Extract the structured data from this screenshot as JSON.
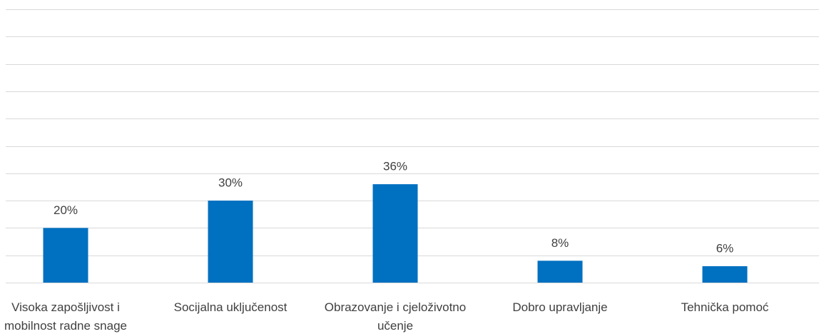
{
  "chart_data": {
    "type": "bar",
    "categories": [
      "Visoka zapošljivost i mobilnost radne snage",
      "Socijalna uključenost",
      "Obrazovanje i cjeloživotno učenje",
      "Dobro upravljanje",
      "Tehnička pomoć"
    ],
    "values": [
      20,
      30,
      36,
      8,
      6
    ],
    "value_labels": [
      "20%",
      "30%",
      "36%",
      "8%",
      "6%"
    ],
    "color": "#0070c0",
    "ylim": [
      0,
      100
    ],
    "yticks": [
      0,
      10,
      20,
      30,
      40,
      50,
      60,
      70,
      80,
      90,
      100
    ],
    "grid": true
  }
}
